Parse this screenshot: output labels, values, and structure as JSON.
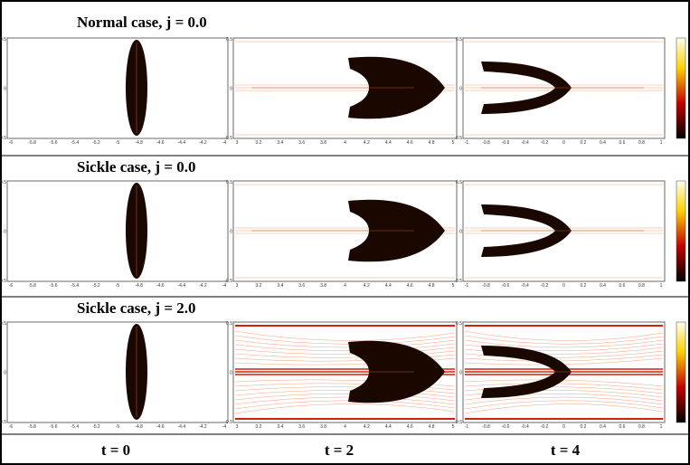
{
  "rows": [
    {
      "title": "Normal case, j = 0.0"
    },
    {
      "title": "Sickle case, j = 0.0"
    },
    {
      "title": "Sickle case, j = 2.0"
    }
  ],
  "columns": [
    {
      "label": "t = 0",
      "x_ticks": [
        "-6",
        "-5.8",
        "-5.6",
        "-5.4",
        "-5.2",
        "-5",
        "-4.8",
        "-4.6",
        "-4.4",
        "-4.2",
        "-4"
      ]
    },
    {
      "label": "t = 2",
      "x_ticks": [
        "3",
        "3.2",
        "3.4",
        "3.6",
        "3.8",
        "4",
        "4.2",
        "4.4",
        "4.6",
        "4.8",
        "5"
      ]
    },
    {
      "label": "t = 4",
      "x_ticks": [
        "-1",
        "-0.8",
        "-0.6",
        "-0.4",
        "-0.2",
        "0",
        "0.2",
        "0.4",
        "0.6",
        "0.8",
        "1"
      ]
    }
  ],
  "y_ticks": [
    "0.5",
    "0",
    "-0.5"
  ]
}
